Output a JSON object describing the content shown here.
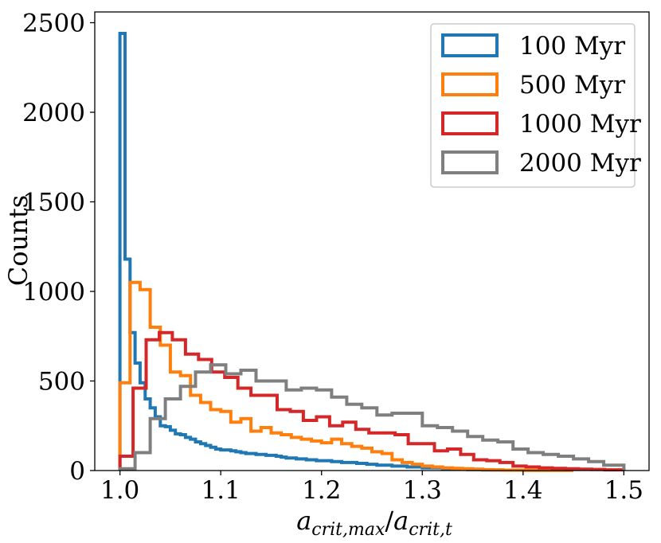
{
  "chart_data": {
    "type": "histogram-step",
    "xlabel": {
      "base1": "a",
      "sub1": "crit,max",
      "slash": "/",
      "base2": "a",
      "sub2": "crit,t"
    },
    "ylabel": "Counts",
    "xlim": [
      0.975,
      1.525
    ],
    "ylim": [
      0,
      2560
    ],
    "xticks": [
      1.0,
      1.1,
      1.2,
      1.3,
      1.4,
      1.5
    ],
    "xtick_labels": [
      "1.0",
      "1.1",
      "1.2",
      "1.3",
      "1.4",
      "1.5"
    ],
    "yticks": [
      0,
      500,
      1000,
      1500,
      2000,
      2500
    ],
    "ytick_labels": [
      "0",
      "500",
      "1000",
      "1500",
      "2000",
      "2500"
    ],
    "legend_position": "top-right",
    "grid": false,
    "series": [
      {
        "name": "100 Myr",
        "color": "#1f77b4",
        "edges": [
          1.0,
          1.005,
          1.01,
          1.015,
          1.02,
          1.025,
          1.03,
          1.035,
          1.04,
          1.045,
          1.05,
          1.055,
          1.06,
          1.065,
          1.07,
          1.075,
          1.08,
          1.085,
          1.09,
          1.095,
          1.1,
          1.105,
          1.11,
          1.115,
          1.12,
          1.125,
          1.13,
          1.135,
          1.14,
          1.145,
          1.15,
          1.155,
          1.16,
          1.165,
          1.17,
          1.175,
          1.18,
          1.185,
          1.19,
          1.195,
          1.2,
          1.205,
          1.21,
          1.215,
          1.22,
          1.225,
          1.23,
          1.235,
          1.24,
          1.245,
          1.25,
          1.255,
          1.26,
          1.265,
          1.27,
          1.275,
          1.28,
          1.285,
          1.29,
          1.295,
          1.3,
          1.305,
          1.31,
          1.315,
          1.32,
          1.325,
          1.33,
          1.335,
          1.34,
          1.345,
          1.35,
          1.36,
          1.38,
          1.4
        ],
        "counts": [
          2440,
          1180,
          770,
          600,
          490,
          400,
          350,
          300,
          250,
          245,
          225,
          205,
          200,
          185,
          175,
          160,
          150,
          140,
          130,
          120,
          115,
          115,
          110,
          105,
          100,
          95,
          95,
          90,
          90,
          85,
          85,
          80,
          75,
          70,
          70,
          65,
          65,
          60,
          60,
          55,
          55,
          55,
          50,
          50,
          45,
          45,
          45,
          40,
          40,
          35,
          35,
          30,
          30,
          30,
          25,
          25,
          25,
          20,
          20,
          20,
          15,
          15,
          15,
          15,
          10,
          10,
          10,
          8,
          8,
          5,
          5,
          3,
          2
        ]
      },
      {
        "name": "500 Myr",
        "color": "#ff7f0e",
        "edges": [
          1.0,
          1.01,
          1.02,
          1.03,
          1.04,
          1.05,
          1.06,
          1.07,
          1.08,
          1.09,
          1.1,
          1.11,
          1.12,
          1.13,
          1.14,
          1.15,
          1.16,
          1.17,
          1.18,
          1.19,
          1.2,
          1.21,
          1.22,
          1.23,
          1.24,
          1.25,
          1.26,
          1.27,
          1.28,
          1.29,
          1.3,
          1.31,
          1.32,
          1.33,
          1.34,
          1.35,
          1.36,
          1.37,
          1.38,
          1.4,
          1.45
        ],
        "counts": [
          490,
          1050,
          1010,
          800,
          700,
          550,
          530,
          420,
          380,
          340,
          330,
          270,
          290,
          220,
          240,
          210,
          200,
          185,
          175,
          165,
          155,
          175,
          150,
          135,
          125,
          105,
          95,
          60,
          45,
          35,
          25,
          20,
          15,
          12,
          10,
          8,
          5,
          3,
          2,
          1
        ]
      },
      {
        "name": "1000 Myr",
        "color": "#d62728",
        "edges": [
          1.0,
          1.013,
          1.026,
          1.039,
          1.052,
          1.065,
          1.078,
          1.091,
          1.104,
          1.117,
          1.13,
          1.143,
          1.156,
          1.169,
          1.182,
          1.195,
          1.208,
          1.221,
          1.234,
          1.247,
          1.26,
          1.273,
          1.286,
          1.299,
          1.312,
          1.325,
          1.338,
          1.351,
          1.364,
          1.377,
          1.39,
          1.403,
          1.416,
          1.429,
          1.442,
          1.455,
          1.468,
          1.481,
          1.5
        ],
        "counts": [
          80,
          460,
          730,
          770,
          730,
          650,
          620,
          550,
          520,
          460,
          420,
          420,
          340,
          330,
          280,
          300,
          250,
          270,
          230,
          210,
          210,
          200,
          150,
          150,
          110,
          120,
          90,
          60,
          55,
          45,
          25,
          20,
          15,
          12,
          10,
          8,
          6,
          4
        ]
      },
      {
        "name": "2000 Myr",
        "color": "#7f7f7f",
        "edges": [
          1.0,
          1.015,
          1.03,
          1.045,
          1.06,
          1.075,
          1.09,
          1.105,
          1.12,
          1.135,
          1.15,
          1.165,
          1.18,
          1.195,
          1.21,
          1.225,
          1.24,
          1.255,
          1.27,
          1.285,
          1.3,
          1.315,
          1.33,
          1.345,
          1.36,
          1.375,
          1.39,
          1.405,
          1.42,
          1.435,
          1.45,
          1.465,
          1.48,
          1.5
        ],
        "counts": [
          10,
          100,
          290,
          400,
          470,
          550,
          590,
          540,
          560,
          500,
          500,
          450,
          460,
          450,
          410,
          370,
          350,
          310,
          320,
          320,
          250,
          240,
          220,
          190,
          170,
          160,
          120,
          100,
          90,
          80,
          65,
          50,
          30
        ]
      }
    ]
  }
}
